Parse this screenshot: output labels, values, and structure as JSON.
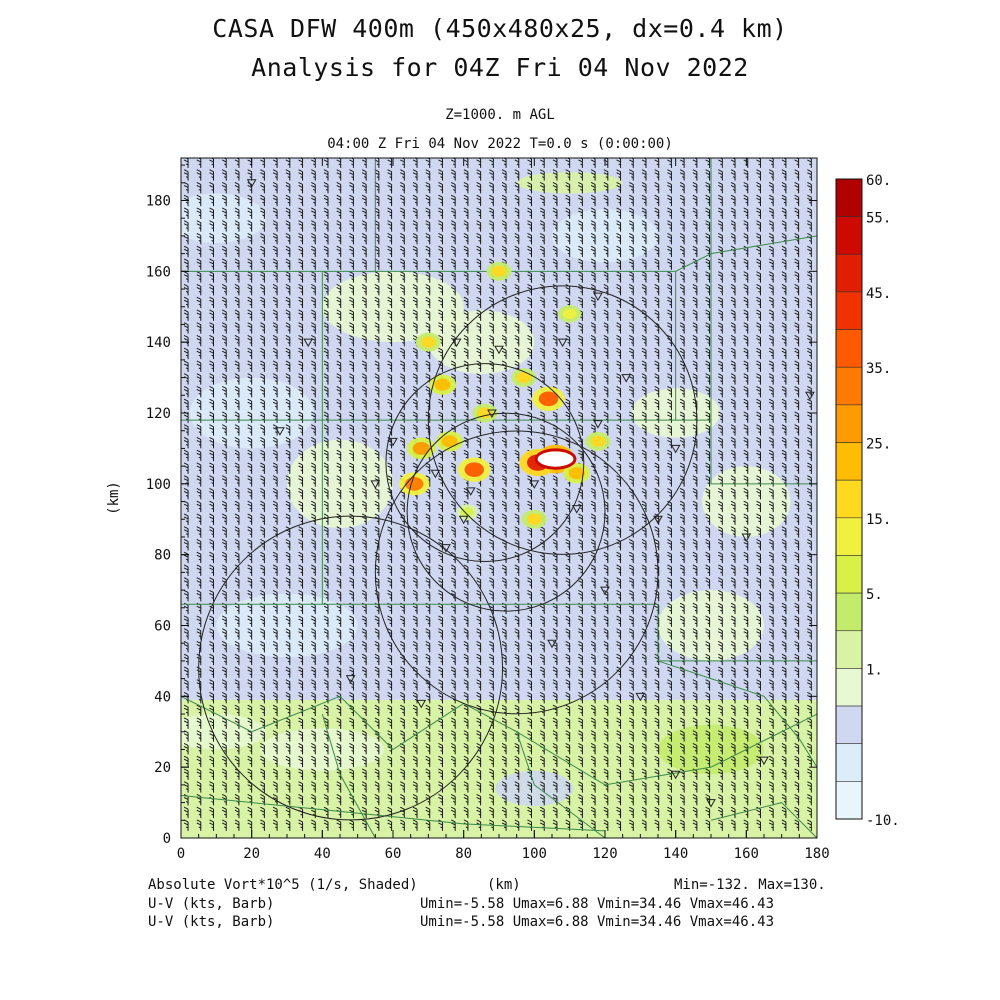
{
  "header": {
    "title": "CASA DFW 400m (450x480x25, dx=0.4 km)",
    "subtitle": "Analysis for 04Z Fri 04 Nov 2022",
    "level": "Z=1000. m AGL",
    "time": "04:00 Z Fri 04 Nov 2022    T=0.0 s (0:00:00)"
  },
  "footer": {
    "field_label": "Absolute Vort*10^5 (1/s, Shaded)",
    "x_unit": "(km)",
    "min_max": "Min=-132. Max=130.",
    "barb1_label": "U-V (kts, Barb)",
    "barb1_stats": "Umin=-5.58 Umax=6.88 Vmin=34.46 Vmax=46.43",
    "barb2_label": "U-V (kts, Barb)",
    "barb2_stats": "Umin=-5.58 Umax=6.88 Vmin=34.46 Vmax=46.43"
  },
  "chart_data": {
    "type": "heatmap",
    "title": "CASA DFW 400m (450x480x25, dx=0.4 km)",
    "subtitle": "Analysis for 04Z Fri 04 Nov 2022",
    "xlabel": "(km)",
    "ylabel": "(km)",
    "xlim": [
      0,
      180
    ],
    "ylim": [
      0,
      192
    ],
    "x_ticks": [
      "0",
      "20",
      "40",
      "60",
      "80",
      "100",
      "120",
      "140",
      "160",
      "180"
    ],
    "y_ticks": [
      "0",
      "20",
      "40",
      "60",
      "80",
      "100",
      "120",
      "140",
      "160",
      "180"
    ],
    "colorbar": {
      "labels": [
        "60.",
        "55.",
        "45.",
        "35.",
        "25.",
        "15.",
        "5.",
        "1.",
        "-10."
      ],
      "colors": [
        "#b00000",
        "#cc0a00",
        "#e01e00",
        "#f03200",
        "#ff5a00",
        "#ff7a00",
        "#ff9a00",
        "#ffbc00",
        "#ffd820",
        "#f0f040",
        "#d8f048",
        "#c4ec6c",
        "#d8f2a6",
        "#e8f8d2",
        "#cfd8f0",
        "#dcecf8",
        "#e8f6fc"
      ]
    },
    "background_bands": [
      {
        "y0": 0,
        "y1": 39,
        "level": "5."
      },
      {
        "y0": 39,
        "y1": 192,
        "level": "1."
      }
    ],
    "vorticity_cells": [
      {
        "x": 106,
        "y": 107,
        "value": 60
      },
      {
        "x": 101,
        "y": 106,
        "value": 55
      },
      {
        "x": 83,
        "y": 104,
        "value": 45
      },
      {
        "x": 68,
        "y": 110,
        "value": 35
      },
      {
        "x": 66,
        "y": 100,
        "value": 40
      },
      {
        "x": 74,
        "y": 128,
        "value": 30
      },
      {
        "x": 104,
        "y": 124,
        "value": 45
      },
      {
        "x": 86,
        "y": 120,
        "value": 25
      },
      {
        "x": 97,
        "y": 130,
        "value": 25
      },
      {
        "x": 76,
        "y": 112,
        "value": 30
      },
      {
        "x": 112,
        "y": 103,
        "value": 30
      },
      {
        "x": 100,
        "y": 90,
        "value": 25
      },
      {
        "x": 70,
        "y": 140,
        "value": 25
      },
      {
        "x": 90,
        "y": 160,
        "value": 25
      },
      {
        "x": 110,
        "y": 148,
        "value": 20
      },
      {
        "x": 118,
        "y": 112,
        "value": 25
      },
      {
        "x": 81,
        "y": 92,
        "value": 15
      }
    ],
    "radar_rings": [
      {
        "x": 108,
        "y": 118,
        "r": 38
      },
      {
        "x": 86,
        "y": 106,
        "r": 28
      },
      {
        "x": 95,
        "y": 75,
        "r": 40
      },
      {
        "x": 48,
        "y": 48,
        "r": 43
      },
      {
        "x": 92,
        "y": 92,
        "r": 28
      }
    ],
    "wind_barbs": {
      "u_range": [
        -5.58,
        6.88
      ],
      "v_range": [
        34.46,
        46.43
      ],
      "units": "kts"
    }
  }
}
